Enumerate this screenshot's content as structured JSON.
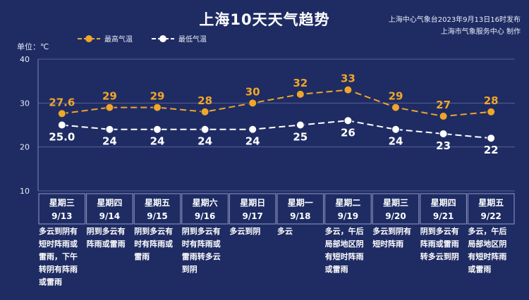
{
  "title": "上海10天天气趋势",
  "source": {
    "line1": "上海中心气象台2023年9月13日16时发布",
    "line2": "上海市气象服务中心 制作"
  },
  "unit": "单位：℃",
  "colors": {
    "high": "#f0a62a",
    "low": "#ffffff",
    "background": "#1f2c63",
    "grid": "#7a86b8"
  },
  "chart_data": {
    "type": "line",
    "ylim": [
      10,
      40
    ],
    "yticks": [
      "10",
      "20",
      "30",
      "40"
    ],
    "grid": true,
    "legend_position": "top-left",
    "categories": [
      {
        "weekday": "星期三",
        "date": "9/13",
        "weather": "多云到阴有\n短时阵雨或\n雷雨，下午\n转阴有阵雨\n或雷雨"
      },
      {
        "weekday": "星期四",
        "date": "9/14",
        "weather": "阴到多云有\n阵雨或雷雨"
      },
      {
        "weekday": "星期五",
        "date": "9/15",
        "weather": "阴到多云有\n时有阵雨或\n雷雨"
      },
      {
        "weekday": "星期六",
        "date": "9/16",
        "weather": "阴到多云有\n时有阵雨或\n雷雨转多云\n到阴"
      },
      {
        "weekday": "星期日",
        "date": "9/17",
        "weather": "多云到阴"
      },
      {
        "weekday": "星期一",
        "date": "9/18",
        "weather": "多云"
      },
      {
        "weekday": "星期二",
        "date": "9/19",
        "weather": "多云，午后\n局部地区阴\n有短时阵雨\n或雷雨"
      },
      {
        "weekday": "星期三",
        "date": "9/20",
        "weather": "多云到阴有\n短时阵雨"
      },
      {
        "weekday": "星期四",
        "date": "9/21",
        "weather": "阴到多云有\n阵雨或雷雨\n转多云到阴"
      },
      {
        "weekday": "星期五",
        "date": "9/22",
        "weather": "多云，午后\n局部地区阴\n有短时阵雨\n或雷雨"
      }
    ],
    "series": [
      {
        "name": "最高气温",
        "values": [
          27.6,
          29,
          29,
          28,
          30,
          32,
          33,
          29,
          27,
          28
        ],
        "labels": [
          "27.6",
          "29",
          "29",
          "28",
          "30",
          "32",
          "33",
          "29",
          "27",
          "28"
        ]
      },
      {
        "name": "最低气温",
        "values": [
          25.0,
          24,
          24,
          24,
          24,
          25,
          26,
          24,
          23,
          22
        ],
        "labels": [
          "25.0",
          "24",
          "24",
          "24",
          "24",
          "25",
          "26",
          "24",
          "23",
          "22"
        ]
      }
    ]
  }
}
